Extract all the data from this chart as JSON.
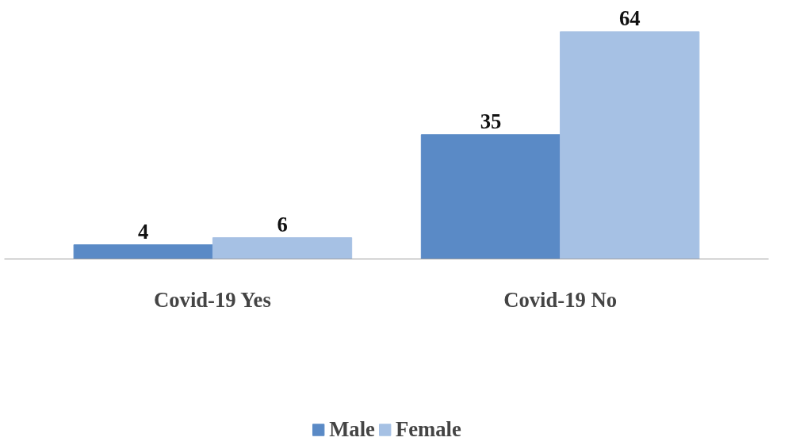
{
  "chart_data": {
    "type": "bar",
    "categories": [
      "Covid-19 Yes",
      "Covid-19 No"
    ],
    "series": [
      {
        "name": "Male",
        "color": "#5a8ac6",
        "values": [
          4,
          35
        ]
      },
      {
        "name": "Female",
        "color": "#a6c1e4",
        "values": [
          6,
          64
        ]
      }
    ],
    "data_labels": true,
    "legend": "bottom"
  }
}
